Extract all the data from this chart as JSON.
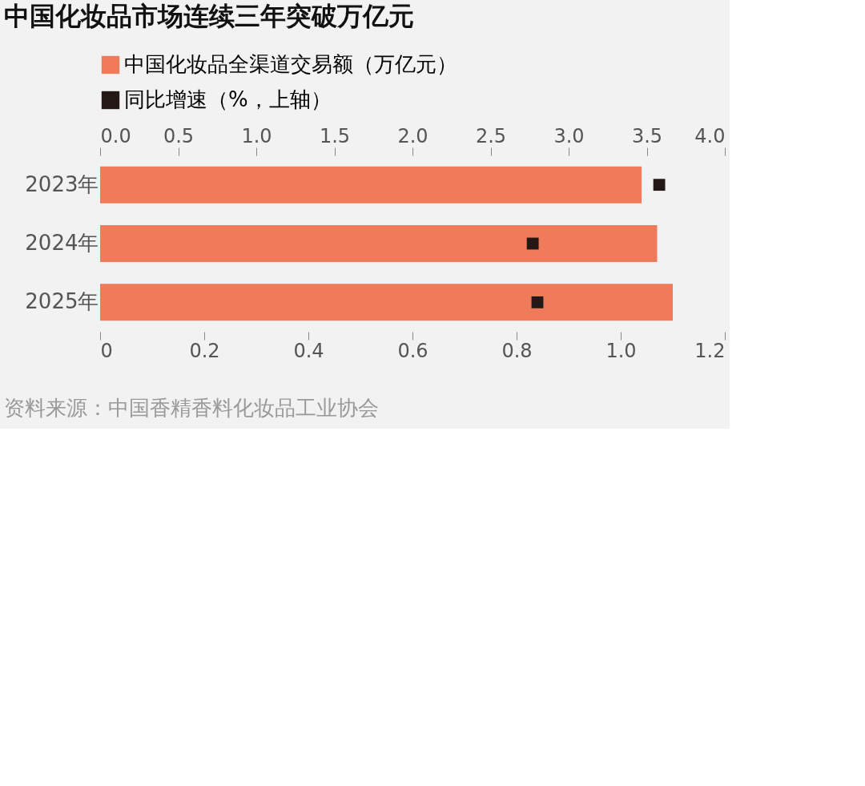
{
  "chart_data": {
    "type": "bar",
    "orientation": "horizontal",
    "title": "中国化妆品市场连续三年突破万亿元",
    "categories": [
      "2023年",
      "2024年",
      "2025年"
    ],
    "series": [
      {
        "name": "中国化妆品全渠道交易额（万亿元）",
        "color": "#ef7b5a",
        "values": [
          1.04,
          1.07,
          1.1
        ]
      },
      {
        "name": "同比增速（%，上轴）",
        "type": "scatter",
        "marker": "square",
        "axis": "x2",
        "color": "#231815",
        "values": [
          3.58,
          2.77,
          2.8
        ]
      }
    ],
    "xlim": [
      0,
      1.2
    ],
    "xticks": [
      0,
      0.2,
      0.4,
      0.6,
      0.8,
      {
        "value": 1,
        "label": "1.0"
      },
      1.2
    ],
    "x2lim": [
      0,
      4
    ],
    "x2ticks": [
      {
        "value": 0,
        "label": "0.0"
      },
      0.5,
      {
        "value": 1,
        "label": "1.0"
      },
      1.5,
      {
        "value": 2,
        "label": "2.0"
      },
      2.5,
      {
        "value": 3,
        "label": "3.0"
      },
      3.5,
      {
        "value": 4,
        "label": "4.0"
      }
    ],
    "legend": "top left",
    "grid": false,
    "annotations": [
      "资料来源：中国香精香料化妆品工业协会"
    ]
  }
}
